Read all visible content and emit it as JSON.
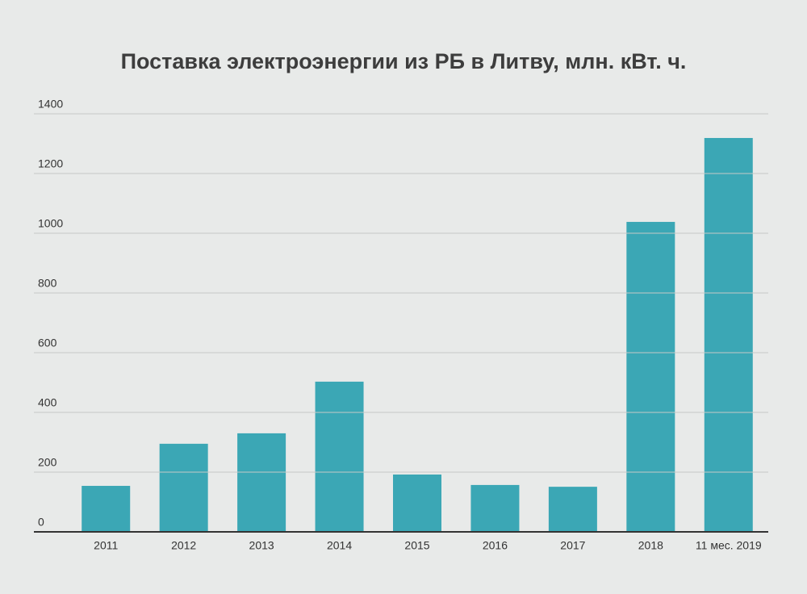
{
  "chart_data": {
    "type": "bar",
    "title": "Поставка электроэнергии из РБ в Литву, млн. кВт. ч.",
    "categories": [
      "2011",
      "2012",
      "2013",
      "2014",
      "2015",
      "2016",
      "2017",
      "2018",
      "11 мес. 2019"
    ],
    "values": [
      154,
      295,
      330,
      503,
      192,
      157,
      151,
      1038,
      1319
    ],
    "color": "#3ba7b5",
    "ylim": [
      0,
      1400
    ],
    "yticks": [
      0,
      200,
      400,
      600,
      800,
      1000,
      1200,
      1400
    ],
    "grid": true
  }
}
